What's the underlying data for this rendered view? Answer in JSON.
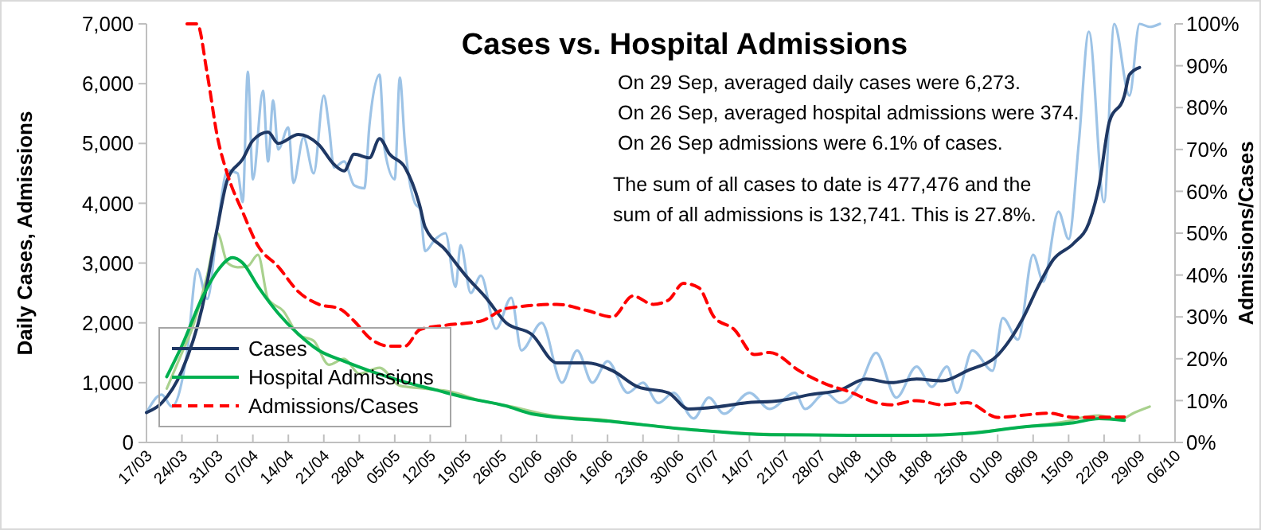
{
  "chart_data": {
    "type": "line",
    "title": "Cases vs. Hospital Admissions",
    "ylabel": "Daily Cases, Admissions",
    "y2label": "Admissions/Cases",
    "annotations": [
      "On 29 Sep, averaged daily cases were 6,273.",
      "On 26 Sep, averaged hospital admissions were 374.",
      "On 26 Sep admissions were 6.1% of cases.",
      "The sum of all cases to date is 477,476 and the",
      "sum of all admissions is 132,741. This is 27.8%."
    ],
    "xlim": [
      "--03-17",
      "--10-06"
    ],
    "xticks": [
      {
        "value": "--03-17",
        "label": "17/03"
      },
      {
        "value": "--03-24",
        "label": "24/03"
      },
      {
        "value": "--03-31",
        "label": "31/03"
      },
      {
        "value": "--04-07",
        "label": "07/04"
      },
      {
        "value": "--04-14",
        "label": "14/04"
      },
      {
        "value": "--04-21",
        "label": "21/04"
      },
      {
        "value": "--04-28",
        "label": "28/04"
      },
      {
        "value": "--05-05",
        "label": "05/05"
      },
      {
        "value": "--05-12",
        "label": "12/05"
      },
      {
        "value": "--05-19",
        "label": "19/05"
      },
      {
        "value": "--05-26",
        "label": "26/05"
      },
      {
        "value": "--06-02",
        "label": "02/06"
      },
      {
        "value": "--06-09",
        "label": "09/06"
      },
      {
        "value": "--06-16",
        "label": "16/06"
      },
      {
        "value": "--06-23",
        "label": "23/06"
      },
      {
        "value": "--06-30",
        "label": "30/06"
      },
      {
        "value": "--07-07",
        "label": "07/07"
      },
      {
        "value": "--07-14",
        "label": "14/07"
      },
      {
        "value": "--07-21",
        "label": "21/07"
      },
      {
        "value": "--07-28",
        "label": "28/07"
      },
      {
        "value": "--08-04",
        "label": "04/08"
      },
      {
        "value": "--08-11",
        "label": "11/08"
      },
      {
        "value": "--08-18",
        "label": "18/08"
      },
      {
        "value": "--08-25",
        "label": "25/08"
      },
      {
        "value": "--09-01",
        "label": "01/09"
      },
      {
        "value": "--09-08",
        "label": "08/09"
      },
      {
        "value": "--09-15",
        "label": "15/09"
      },
      {
        "value": "--09-22",
        "label": "22/09"
      },
      {
        "value": "--09-29",
        "label": "29/09"
      },
      {
        "value": "--10-06",
        "label": "06/10"
      }
    ],
    "ylim": [
      0,
      7000
    ],
    "yticks": [
      0,
      {
        "value": 1000,
        "label": "1,000"
      },
      {
        "value": 2000,
        "label": "2,000"
      },
      {
        "value": 3000,
        "label": "3,000"
      },
      {
        "value": 4000,
        "label": "4,000"
      },
      {
        "value": 5000,
        "label": "5,000"
      },
      {
        "value": 6000,
        "label": "6,000"
      },
      {
        "value": 7000,
        "label": "7,000"
      }
    ],
    "y2lim": [
      0,
      100
    ],
    "y2ticks": [
      {
        "value": 0,
        "label": "0%"
      },
      {
        "value": 10,
        "label": "10%"
      },
      {
        "value": 20,
        "label": "20%"
      },
      {
        "value": 30,
        "label": "30%"
      },
      {
        "value": 40,
        "label": "40%"
      },
      {
        "value": 50,
        "label": "50%"
      },
      {
        "value": 60,
        "label": "60%"
      },
      {
        "value": 70,
        "label": "70%"
      },
      {
        "value": 80,
        "label": "80%"
      },
      {
        "value": 90,
        "label": "90%"
      },
      {
        "value": 100,
        "label": "100%"
      }
    ],
    "grid": false,
    "legend": "bottom left",
    "marker": "none",
    "series": [
      {
        "color": "#9dc3e6",
        "x": [
          "--03-17",
          "--03-20",
          "--03-22",
          "--03-25",
          "--03-27",
          "--03-29",
          "--03-31",
          "--04-02",
          "--04-04",
          "--04-05",
          "--04-06",
          "--04-07",
          "--04-09",
          "--04-10",
          "--04-11",
          "--04-12",
          "--04-14",
          "--04-15",
          "--04-17",
          "--04-19",
          "--04-21",
          "--04-22",
          "--04-23",
          "--04-25",
          "--04-27",
          "--04-29",
          "--04-30",
          "--05-02",
          "--05-03",
          "--05-05",
          "--05-06",
          "--05-07",
          "--05-09",
          "--05-10",
          "--05-11",
          "--05-13",
          "--05-15",
          "--05-17",
          "--05-18",
          "--05-20",
          "--05-22",
          "--05-25",
          "--05-28",
          "--05-30",
          "--06-03",
          "--06-07",
          "--06-10",
          "--06-13",
          "--06-16",
          "--06-20",
          "--06-23",
          "--06-26",
          "--06-29",
          "--07-03",
          "--07-06",
          "--07-09",
          "--07-14",
          "--07-18",
          "--07-23",
          "--07-25",
          "--07-29",
          "--08-01",
          "--08-05",
          "--08-08",
          "--08-12",
          "--08-16",
          "--08-19",
          "--08-22",
          "--08-24",
          "--08-27",
          "--08-31",
          "--09-02",
          "--09-05",
          "--09-08",
          "--09-10",
          "--09-13",
          "--09-15",
          "--09-17",
          "--09-19",
          "--09-22",
          "--09-24",
          "--09-27",
          "--09-29",
          "--10-01",
          "--10-03"
        ],
        "values": [
          500,
          800,
          600,
          1500,
          2900,
          2400,
          3600,
          4550,
          4500,
          4020,
          6200,
          4400,
          5880,
          4700,
          5720,
          4900,
          5270,
          4340,
          5100,
          4500,
          5800,
          5300,
          4600,
          4700,
          4300,
          4250,
          5300,
          6150,
          4900,
          4400,
          6100,
          5000,
          4000,
          3900,
          3200,
          3400,
          3500,
          2600,
          3300,
          2500,
          2790,
          1900,
          2420,
          1540,
          2000,
          1000,
          1540,
          1000,
          1360,
          830,
          1000,
          660,
          830,
          400,
          750,
          480,
          830,
          560,
          830,
          560,
          830,
          660,
          1000,
          1500,
          750,
          1270,
          930,
          1270,
          830,
          1540,
          1200,
          2080,
          1720,
          3140,
          2690,
          3860,
          3400,
          5000,
          6870,
          4020,
          7000,
          5800,
          7000,
          6950,
          7000
        ]
      },
      {
        "color": "#a9d18e",
        "x": [
          "--03-21",
          "--03-24",
          "--03-26",
          "--03-29",
          "--03-31",
          "--04-02",
          "--04-04",
          "--04-06",
          "--04-08",
          "--04-10",
          "--04-13",
          "--04-16",
          "--04-19",
          "--04-22",
          "--04-25",
          "--04-28",
          "--05-02",
          "--05-06",
          "--05-11",
          "--05-16",
          "--05-22",
          "--05-28",
          "--06-05",
          "--06-15",
          "--06-25",
          "--07-05",
          "--07-15",
          "--07-25",
          "--08-04",
          "--08-14",
          "--08-24",
          "--09-03",
          "--09-13",
          "--09-21",
          "--09-25",
          "--09-28",
          "--10-01"
        ],
        "values": [
          900,
          1500,
          1900,
          2800,
          3500,
          3000,
          2930,
          2950,
          3140,
          2400,
          2200,
          1800,
          1700,
          1300,
          1400,
          1150,
          1250,
          950,
          900,
          850,
          700,
          600,
          450,
          380,
          280,
          200,
          150,
          130,
          120,
          110,
          140,
          230,
          330,
          450,
          380,
          500,
          600
        ]
      },
      {
        "name": "Cases",
        "color": "#1f3864",
        "x": [
          "--03-17",
          "--03-20",
          "--03-24",
          "--03-28",
          "--03-31",
          "--04-02",
          "--04-05",
          "--04-07",
          "--04-10",
          "--04-12",
          "--04-16",
          "--04-20",
          "--04-23",
          "--04-25",
          "--04-27",
          "--04-30",
          "--05-02",
          "--05-04",
          "--05-07",
          "--05-10",
          "--05-11",
          "--05-15",
          "--05-19",
          "--05-23",
          "--05-27",
          "--06-01",
          "--06-06",
          "--06-12",
          "--06-17",
          "--06-22",
          "--06-28",
          "--07-02",
          "--07-08",
          "--07-13",
          "--07-20",
          "--07-26",
          "--08-01",
          "--08-06",
          "--08-11",
          "--08-16",
          "--08-21",
          "--08-26",
          "--09-01",
          "--09-06",
          "--09-09",
          "--09-12",
          "--09-16",
          "--09-19",
          "--09-21",
          "--09-23",
          "--09-26",
          "--09-27",
          "--09-29"
        ],
        "values": [
          500,
          660,
          1200,
          2260,
          3600,
          4400,
          4740,
          5050,
          5190,
          5000,
          5150,
          4980,
          4650,
          4540,
          4820,
          4760,
          5080,
          4820,
          4600,
          3940,
          3600,
          3220,
          2790,
          2420,
          2000,
          1810,
          1330,
          1330,
          1200,
          930,
          830,
          560,
          600,
          660,
          700,
          800,
          880,
          1060,
          1000,
          1060,
          1030,
          1200,
          1460,
          2080,
          2610,
          3060,
          3330,
          3670,
          4290,
          5350,
          5800,
          6150,
          6270
        ]
      },
      {
        "name": "Hospital Admissions",
        "color": "#00b050",
        "x": [
          "--03-21",
          "--03-24",
          "--03-28",
          "--03-31",
          "--04-03",
          "--04-05",
          "--04-08",
          "--04-12",
          "--04-16",
          "--04-20",
          "--04-25",
          "--04-30",
          "--05-07",
          "--05-13",
          "--05-19",
          "--05-27",
          "--06-01",
          "--06-17",
          "--07-03",
          "--07-18",
          "--08-03",
          "--08-16",
          "--08-26",
          "--09-06",
          "--09-16",
          "--09-21",
          "--09-26"
        ],
        "values": [
          1100,
          1620,
          2420,
          2870,
          3090,
          3000,
          2610,
          2160,
          1810,
          1540,
          1360,
          1200,
          1010,
          880,
          750,
          610,
          480,
          350,
          210,
          130,
          120,
          120,
          150,
          260,
          330,
          400,
          370
        ]
      },
      {
        "name": "Admissions/Cases",
        "color": "#ff0000",
        "axis": "y2",
        "line_style": "dashed",
        "x": [
          "--03-25",
          "--03-27",
          "--03-29",
          "--03-31",
          "--04-02",
          "--04-05",
          "--04-08",
          "--04-12",
          "--04-16",
          "--04-20",
          "--04-24",
          "--04-27",
          "--04-30",
          "--05-04",
          "--05-07",
          "--05-10",
          "--05-15",
          "--05-22",
          "--05-27",
          "--06-06",
          "--06-12",
          "--06-17",
          "--06-21",
          "--06-25",
          "--06-28",
          "--07-01",
          "--07-04",
          "--07-07",
          "--07-11",
          "--07-15",
          "--07-18",
          "--07-24",
          "--07-29",
          "--08-03",
          "--08-08",
          "--08-11",
          "--08-16",
          "--08-21",
          "--08-26",
          "--09-01",
          "--09-06",
          "--09-11",
          "--09-16",
          "--09-26"
        ],
        "values": [
          100,
          100,
          88,
          73,
          64,
          55,
          47,
          42,
          36,
          33,
          32,
          29,
          25,
          23,
          23,
          27,
          28,
          29,
          32,
          33,
          31.5,
          30,
          35,
          33,
          34,
          38,
          37,
          30,
          27,
          21,
          21.5,
          17,
          14,
          12,
          9.5,
          9,
          10,
          9,
          9.5,
          6,
          6.5,
          7,
          6,
          6.1
        ]
      }
    ]
  }
}
